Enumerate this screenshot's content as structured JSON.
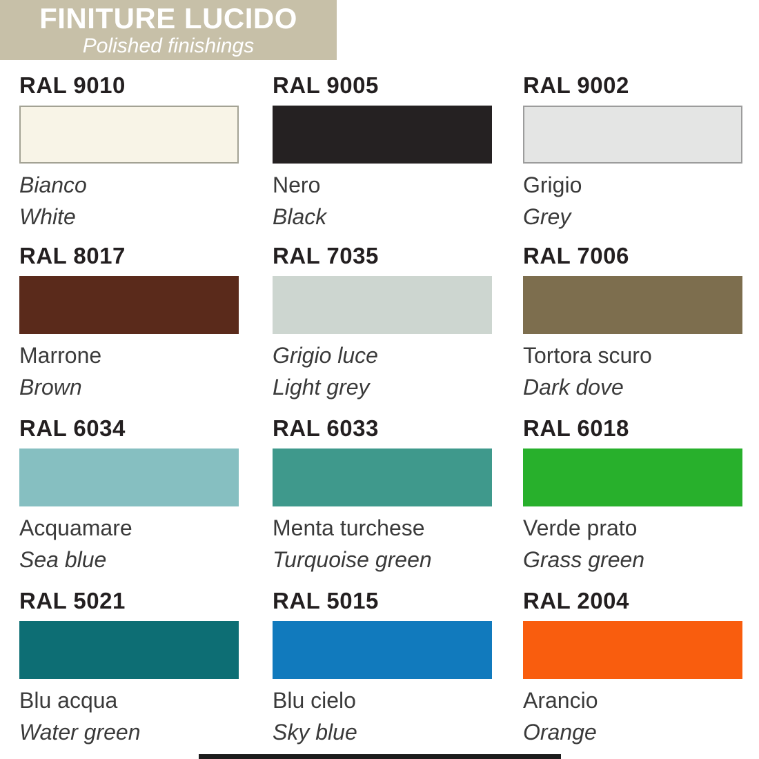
{
  "header": {
    "title": "FINITURE LUCIDO",
    "subtitle": "Polished finishings",
    "bg_color": "#c7c0a8",
    "text_color": "#ffffff"
  },
  "swatches": [
    {
      "code": "RAL 9010",
      "name_it": "Bianco",
      "name_en": "White",
      "color": "#f8f4e7",
      "border": "#a3a294",
      "it_italic": true
    },
    {
      "code": "RAL 9005",
      "name_it": "Nero",
      "name_en": "Black",
      "color": "#252122",
      "border": "",
      "it_italic": false
    },
    {
      "code": "RAL 9002",
      "name_it": "Grigio",
      "name_en": "Grey",
      "color": "#e4e5e4",
      "border": "#9c9c9c",
      "it_italic": false
    },
    {
      "code": "RAL 8017",
      "name_it": "Marrone",
      "name_en": "Brown",
      "color": "#5a2a1b",
      "border": "",
      "it_italic": false
    },
    {
      "code": "RAL 7035",
      "name_it": "Grigio luce",
      "name_en": "Light grey",
      "color": "#cdd6d0",
      "border": "",
      "it_italic": true
    },
    {
      "code": "RAL 7006",
      "name_it": "Tortora scuro",
      "name_en": "Dark dove",
      "color": "#7d6e4e",
      "border": "",
      "it_italic": false
    },
    {
      "code": "RAL 6034",
      "name_it": "Acquamare",
      "name_en": "Sea blue",
      "color": "#86bfc1",
      "border": "",
      "it_italic": false
    },
    {
      "code": "RAL 6033",
      "name_it": "Menta turchese",
      "name_en": "Turquoise green",
      "color": "#3f998c",
      "border": "",
      "it_italic": false
    },
    {
      "code": "RAL 6018",
      "name_it": "Verde prato",
      "name_en": "Grass green",
      "color": "#28b02c",
      "border": "",
      "it_italic": false
    },
    {
      "code": "RAL 5021",
      "name_it": "Blu acqua",
      "name_en": "Water green",
      "color": "#0d6e74",
      "border": "",
      "it_italic": false
    },
    {
      "code": "RAL 5015",
      "name_it": "Blu cielo",
      "name_en": "Sky blue",
      "color": "#117abd",
      "border": "",
      "it_italic": false
    },
    {
      "code": "RAL 2004",
      "name_it": "Arancio",
      "name_en": "Orange",
      "color": "#f95d0e",
      "border": "",
      "it_italic": false
    }
  ],
  "footer_bar_color": "#1c1c1c"
}
